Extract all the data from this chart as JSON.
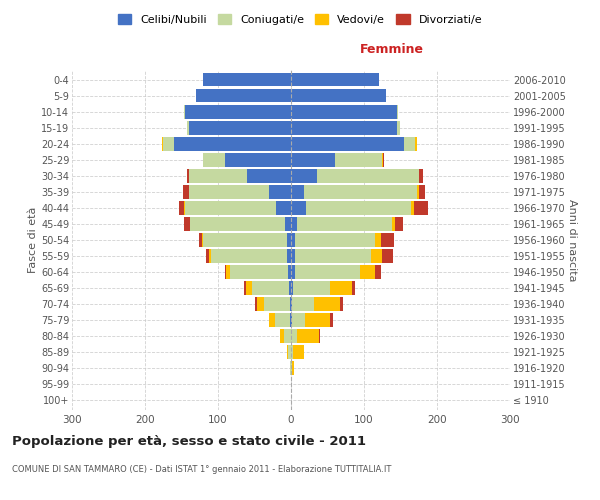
{
  "age_groups": [
    "100+",
    "95-99",
    "90-94",
    "85-89",
    "80-84",
    "75-79",
    "70-74",
    "65-69",
    "60-64",
    "55-59",
    "50-54",
    "45-49",
    "40-44",
    "35-39",
    "30-34",
    "25-29",
    "20-24",
    "15-19",
    "10-14",
    "5-9",
    "0-4"
  ],
  "birth_years": [
    "≤ 1910",
    "1911-1915",
    "1916-1920",
    "1921-1925",
    "1926-1930",
    "1931-1935",
    "1936-1940",
    "1941-1945",
    "1946-1950",
    "1951-1955",
    "1956-1960",
    "1961-1965",
    "1966-1970",
    "1971-1975",
    "1976-1980",
    "1981-1985",
    "1986-1990",
    "1991-1995",
    "1996-2000",
    "2001-2005",
    "2006-2010"
  ],
  "male": {
    "celibi": [
      0,
      0,
      0,
      0,
      0,
      2,
      2,
      3,
      4,
      5,
      5,
      8,
      20,
      30,
      60,
      90,
      160,
      140,
      145,
      130,
      120
    ],
    "coniugati": [
      0,
      0,
      1,
      4,
      10,
      20,
      35,
      50,
      80,
      105,
      115,
      130,
      125,
      110,
      80,
      30,
      15,
      3,
      2,
      0,
      0
    ],
    "vedovi": [
      0,
      0,
      0,
      2,
      5,
      8,
      10,
      8,
      5,
      3,
      2,
      1,
      1,
      0,
      0,
      0,
      2,
      0,
      0,
      0,
      0
    ],
    "divorziati": [
      0,
      0,
      0,
      0,
      0,
      0,
      2,
      3,
      2,
      4,
      4,
      8,
      8,
      8,
      2,
      1,
      0,
      0,
      0,
      0,
      0
    ]
  },
  "female": {
    "nubili": [
      0,
      0,
      0,
      0,
      0,
      1,
      2,
      3,
      5,
      5,
      5,
      8,
      20,
      18,
      35,
      60,
      155,
      145,
      145,
      130,
      120
    ],
    "coniugate": [
      0,
      0,
      1,
      3,
      8,
      18,
      30,
      50,
      90,
      105,
      110,
      130,
      145,
      155,
      140,
      65,
      15,
      4,
      2,
      0,
      0
    ],
    "vedove": [
      0,
      0,
      3,
      15,
      30,
      35,
      35,
      30,
      20,
      15,
      8,
      5,
      3,
      2,
      1,
      1,
      2,
      0,
      0,
      0,
      0
    ],
    "divorziate": [
      0,
      0,
      0,
      0,
      2,
      3,
      4,
      5,
      8,
      15,
      18,
      10,
      20,
      8,
      5,
      1,
      1,
      0,
      0,
      0,
      0
    ]
  },
  "colors": {
    "celibi": "#4472c4",
    "coniugati": "#c5d9a0",
    "vedovi": "#ffc000",
    "divorziati": "#c0392b"
  },
  "xlim": 300,
  "title": "Popolazione per età, sesso e stato civile - 2011",
  "subtitle": "COMUNE DI SAN TAMMARO (CE) - Dati ISTAT 1° gennaio 2011 - Elaborazione TUTTITALIA.IT",
  "xlabel_right": "Femmine",
  "ylabel_left": "Fasce di età",
  "ylabel_right": "Anni di nascita",
  "bg_color": "#ffffff",
  "grid_color": "#cccccc"
}
